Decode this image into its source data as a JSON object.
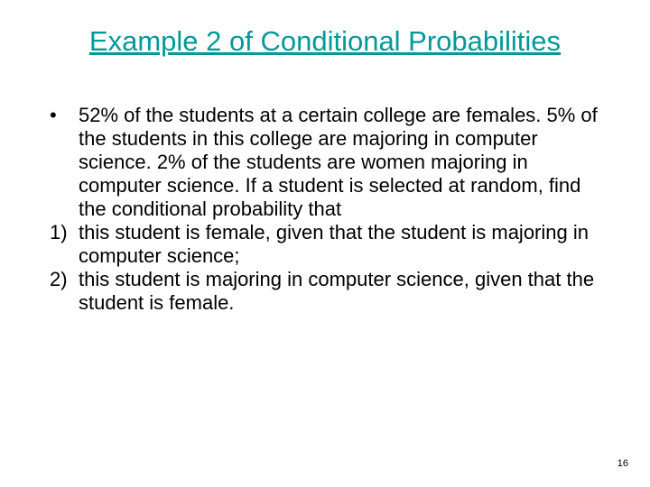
{
  "slide": {
    "title": "Example 2 of Conditional Probabilities",
    "title_color": "#009999",
    "title_fontsize": 31,
    "body_fontsize": 22,
    "body_color": "#000000",
    "background_color": "#ffffff",
    "items": [
      {
        "marker": "•",
        "text": "52% of the students at a certain college are females. 5% of the students in this college are majoring in computer science.  2% of the students are women majoring in computer science.  If a student is selected at random, find the conditional probability that"
      },
      {
        "marker": "1)",
        "text": "this student is female, given that the student is majoring in computer science;"
      },
      {
        "marker": "2)",
        "text": "this student is majoring in computer science, given that the student is female."
      }
    ],
    "page_number": "16"
  }
}
